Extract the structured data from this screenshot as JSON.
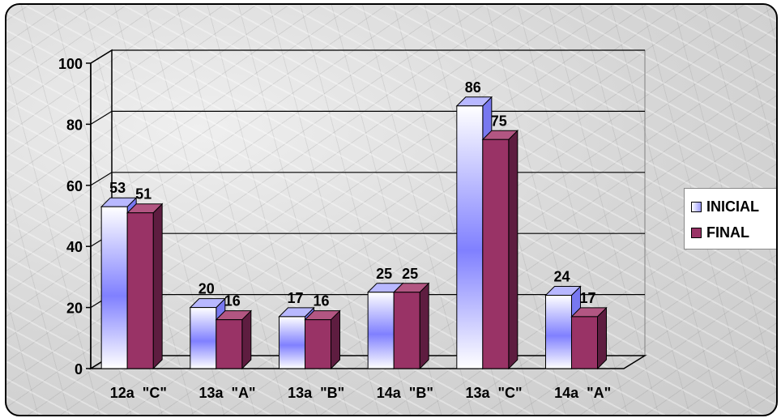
{
  "chart_data": {
    "type": "bar",
    "categories": [
      "12a  \"C\"",
      "13a  \"A\"",
      "13a  \"B\"",
      "14a  \"B\"",
      "13a  \"C\"",
      "14a  \"A\""
    ],
    "series": [
      {
        "name": "INICIAL",
        "values": [
          53,
          20,
          17,
          25,
          86,
          24
        ],
        "color": "#ffffff",
        "shade_color": "#8080ff"
      },
      {
        "name": "FINAL",
        "values": [
          51,
          16,
          16,
          25,
          75,
          17
        ],
        "color": "#993366"
      }
    ],
    "ylim": [
      0,
      100
    ],
    "yticks": [
      0,
      20,
      40,
      60,
      80,
      100
    ],
    "grid": true,
    "legend_position": "right",
    "data_labels": true,
    "style": "3d-clustered-column"
  }
}
